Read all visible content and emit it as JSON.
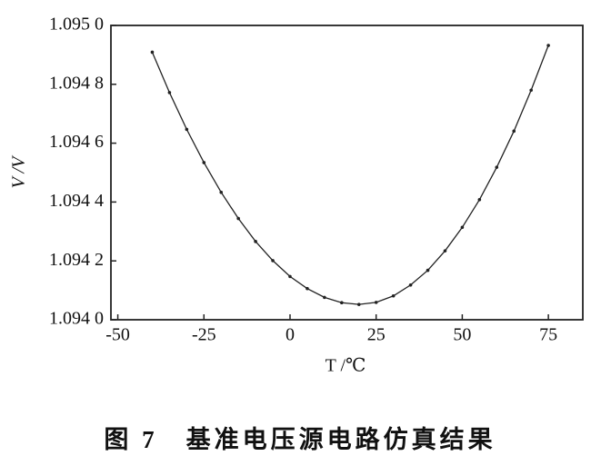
{
  "chart_data": {
    "type": "line",
    "x_label": "T /℃",
    "y_label": "V /V",
    "caption": "图 7　基准电压源电路仿真结果",
    "x": [
      -40,
      -35,
      -30,
      -25,
      -20,
      -15,
      -10,
      -5,
      0,
      5,
      10,
      15,
      20,
      25,
      30,
      35,
      40,
      45,
      50,
      55,
      60,
      65,
      70,
      75
    ],
    "series": [
      {
        "color": "#222222",
        "values": [
          1.094909,
          1.094772,
          1.094647,
          1.094534,
          1.094433,
          1.094344,
          1.094266,
          1.094201,
          1.094147,
          1.094106,
          1.094076,
          1.094058,
          1.094052,
          1.094059,
          1.094081,
          1.094118,
          1.094168,
          1.094234,
          1.094314,
          1.094408,
          1.094518,
          1.094641,
          1.09478,
          1.094932
        ]
      }
    ],
    "xlim": [
      -52,
      85
    ],
    "xticks": [
      -50,
      -25,
      0,
      25,
      50,
      75
    ],
    "ylim": [
      1.094,
      1.095
    ],
    "yticks": [
      {
        "value": 1.094,
        "label": "1.094 0"
      },
      {
        "value": 1.0942,
        "label": "1.094 2"
      },
      {
        "value": 1.0944,
        "label": "1.094 4"
      },
      {
        "value": 1.0946,
        "label": "1.094 6"
      },
      {
        "value": 1.0948,
        "label": "1.094 8"
      },
      {
        "value": 1.095,
        "label": "1.095 0"
      }
    ],
    "grid": false
  }
}
